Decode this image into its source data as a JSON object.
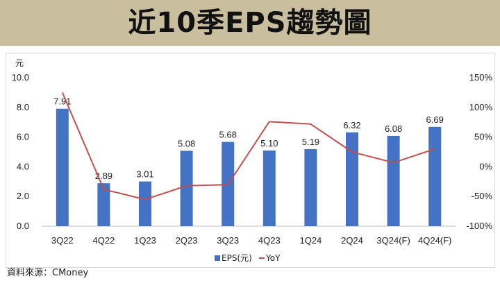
{
  "title": "近10季EPS趨勢圖",
  "source": "資料來源：CMoney",
  "chart_data": {
    "type": "bar",
    "categories": [
      "3Q22",
      "4Q22",
      "1Q23",
      "2Q23",
      "3Q23",
      "4Q23",
      "1Q24",
      "2Q24",
      "3Q24(F)",
      "4Q24(F)"
    ],
    "y_unit": "元",
    "ylim": [
      0,
      10
    ],
    "y_ticks": [
      "0.0",
      "2.0",
      "4.0",
      "6.0",
      "8.0",
      "10.0"
    ],
    "y2lim": [
      -100,
      150
    ],
    "y2_ticks": [
      "-100%",
      "-50%",
      "0%",
      "50%",
      "100%",
      "150%"
    ],
    "legend_position": "bottom",
    "grid": false,
    "series": [
      {
        "name": "EPS(元)",
        "type": "bar",
        "axis": "left",
        "color": "#4472c4",
        "values": [
          7.91,
          2.89,
          3.01,
          5.08,
          5.68,
          5.1,
          5.19,
          6.32,
          6.08,
          6.69
        ],
        "labels": [
          "7.91",
          "2.89",
          "3.01",
          "5.08",
          "5.68",
          "5.10",
          "5.19",
          "6.32",
          "6.08",
          "6.69"
        ]
      },
      {
        "name": "YoY",
        "type": "line",
        "axis": "right",
        "color": "#c0504d",
        "values": [
          125,
          -38,
          -55,
          -32,
          -30,
          76,
          72,
          25,
          7,
          30
        ]
      }
    ]
  }
}
